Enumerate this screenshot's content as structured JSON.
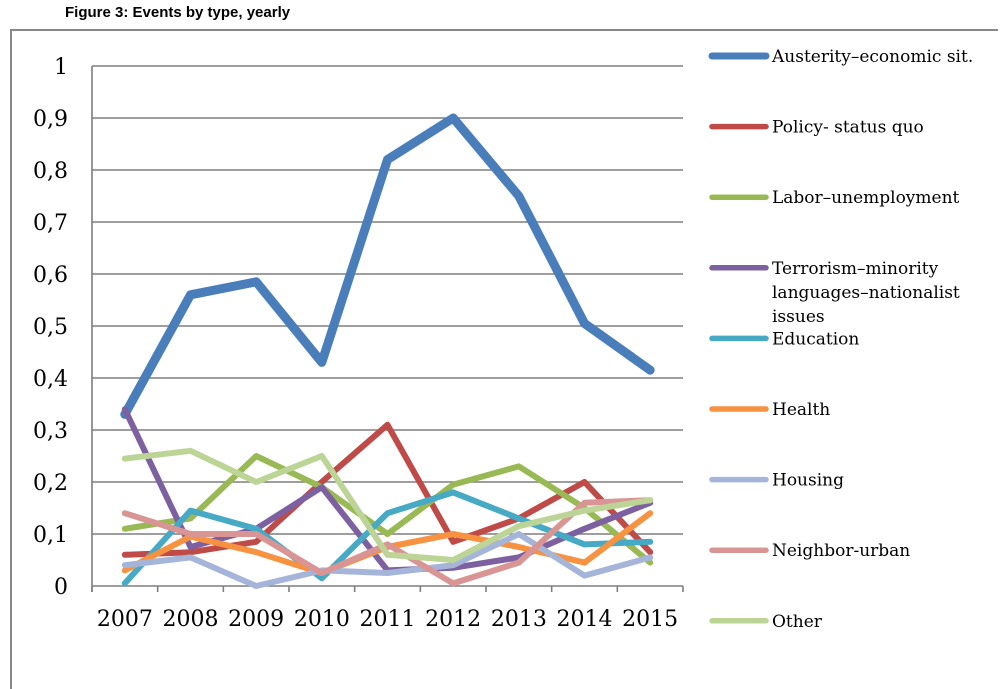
{
  "figure_title": "Figure 3: Events by type, yearly",
  "chart_data": {
    "type": "line",
    "title": "",
    "xlabel": "",
    "ylabel": "",
    "x": [
      "2007",
      "2008",
      "2009",
      "2010",
      "2011",
      "2012",
      "2013",
      "2014",
      "2015"
    ],
    "ylim": [
      0,
      1
    ],
    "y_ticks": [
      "0",
      "0,1",
      "0,2",
      "0,3",
      "0,4",
      "0,5",
      "0,6",
      "0,7",
      "0,8",
      "0,9",
      "1"
    ],
    "grid": true,
    "legend_position": "right",
    "series": [
      {
        "name": "Austerity–economic sit.",
        "color": "#4a7ebb",
        "values": [
          0.33,
          0.56,
          0.585,
          0.43,
          0.82,
          0.9,
          0.75,
          0.505,
          0.415
        ]
      },
      {
        "name": "Policy- status quo",
        "color": "#be4b48",
        "values": [
          0.06,
          0.065,
          0.085,
          0.2,
          0.31,
          0.085,
          0.13,
          0.2,
          0.065
        ]
      },
      {
        "name": "Labor–unemployment",
        "color": "#98b954",
        "values": [
          0.11,
          0.13,
          0.25,
          0.19,
          0.1,
          0.195,
          0.23,
          0.15,
          0.045
        ]
      },
      {
        "name": "Terrorism–minority languages–nationalist issues",
        "color": "#7d60a0",
        "values": [
          0.34,
          0.075,
          0.11,
          0.19,
          0.03,
          0.035,
          0.055,
          0.11,
          0.16
        ]
      },
      {
        "name": "Education",
        "color": "#46aac5",
        "values": [
          0.005,
          0.145,
          0.11,
          0.015,
          0.14,
          0.18,
          0.13,
          0.08,
          0.085
        ]
      },
      {
        "name": "Health",
        "color": "#f69240",
        "values": [
          0.03,
          0.095,
          0.065,
          0.025,
          0.075,
          0.1,
          0.075,
          0.045,
          0.14
        ]
      },
      {
        "name": "Housing",
        "color": "#a5b5d9",
        "values": [
          0.04,
          0.055,
          0.0,
          0.03,
          0.025,
          0.04,
          0.1,
          0.02,
          0.055
        ]
      },
      {
        "name": "Neighbor-urban",
        "color": "#d99593",
        "values": [
          0.14,
          0.1,
          0.1,
          0.025,
          0.08,
          0.005,
          0.045,
          0.16,
          0.165
        ]
      },
      {
        "name": "Other",
        "color": "#bcd597",
        "values": [
          0.245,
          0.26,
          0.2,
          0.25,
          0.06,
          0.05,
          0.115,
          0.145,
          0.165
        ]
      }
    ]
  }
}
